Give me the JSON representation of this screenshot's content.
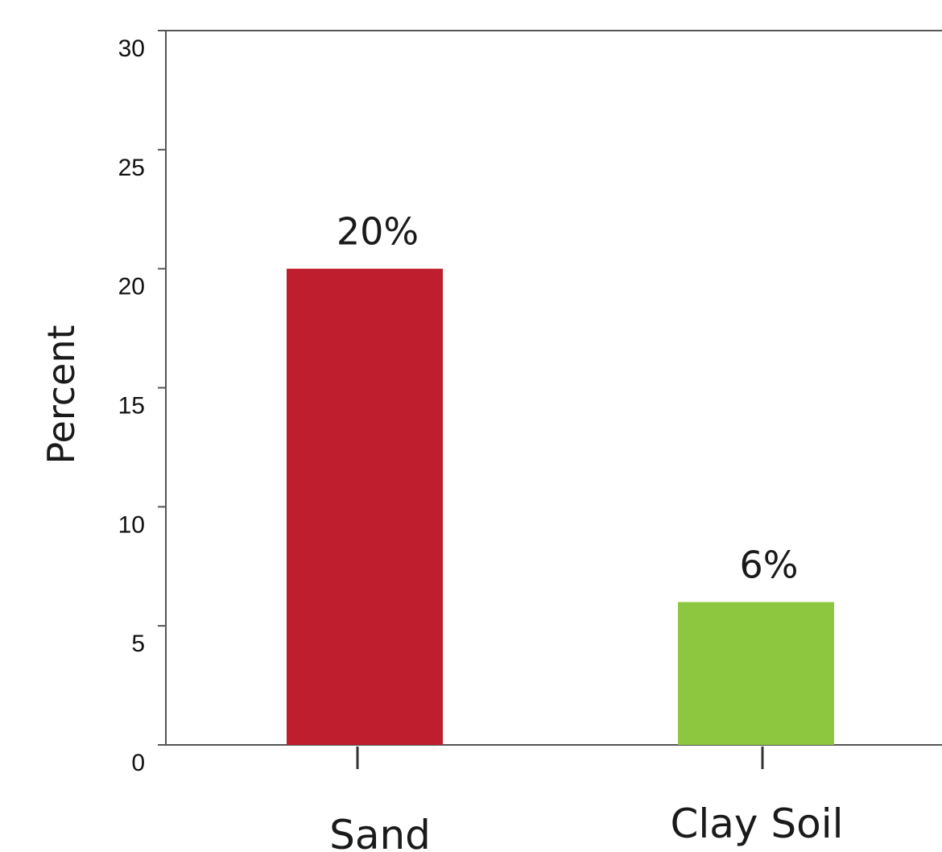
{
  "chart_data": {
    "type": "bar",
    "title": "",
    "xlabel": "",
    "ylabel": "Percent",
    "ylim": [
      0,
      30
    ],
    "yticks": [
      "0",
      "5",
      "10",
      "15",
      "20",
      "25",
      "30"
    ],
    "categories": [
      "Sand",
      "Clay Soil"
    ],
    "values": [
      20,
      6
    ],
    "data_labels": [
      "20%",
      "6%"
    ],
    "colors": [
      "#be1e2d",
      "#8dc63f"
    ],
    "grid": false,
    "legend": "none"
  }
}
